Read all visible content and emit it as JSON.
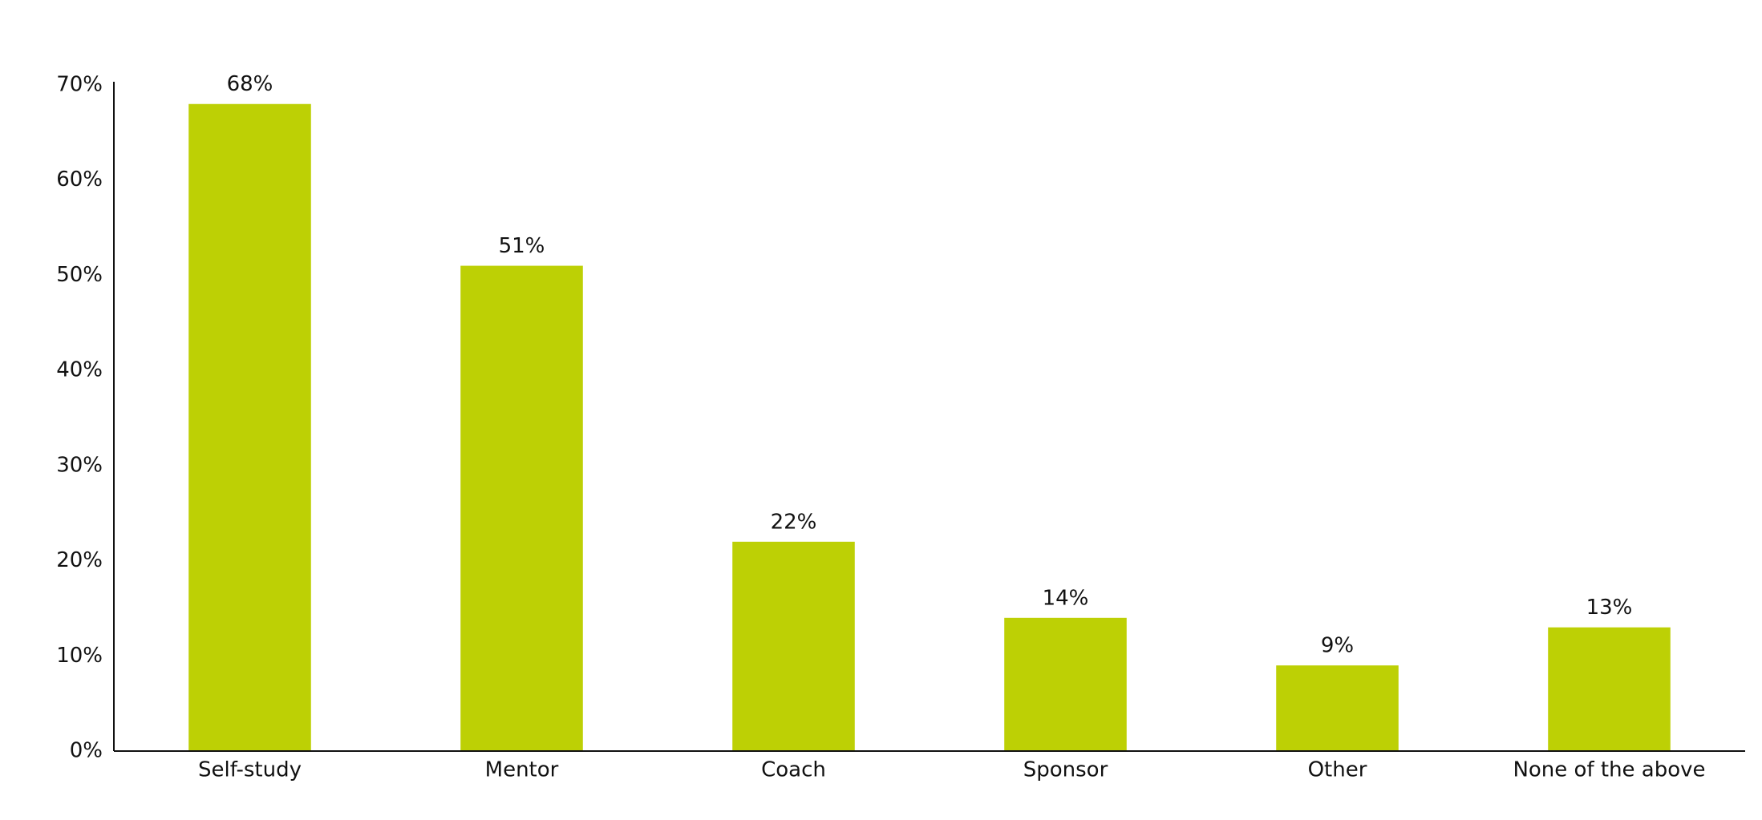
{
  "chart_data": {
    "type": "bar",
    "categories": [
      "Self-study",
      "Mentor",
      "Coach",
      "Sponsor",
      "Other",
      "None of the above"
    ],
    "values": [
      68,
      51,
      22,
      14,
      9,
      13
    ],
    "value_labels": [
      "68%",
      "51%",
      "22%",
      "14%",
      "9%",
      "13%"
    ],
    "color": "#bdd005",
    "ylim": [
      0,
      70
    ],
    "yticks": [
      {
        "value": 0,
        "label": "0%"
      },
      {
        "value": 10,
        "label": "10%"
      },
      {
        "value": 20,
        "label": "20%"
      },
      {
        "value": 30,
        "label": "30%"
      },
      {
        "value": 40,
        "label": "40%"
      },
      {
        "value": 50,
        "label": "50%"
      },
      {
        "value": 60,
        "label": "60%"
      },
      {
        "value": 70,
        "label": "70%"
      }
    ],
    "grid": false
  }
}
